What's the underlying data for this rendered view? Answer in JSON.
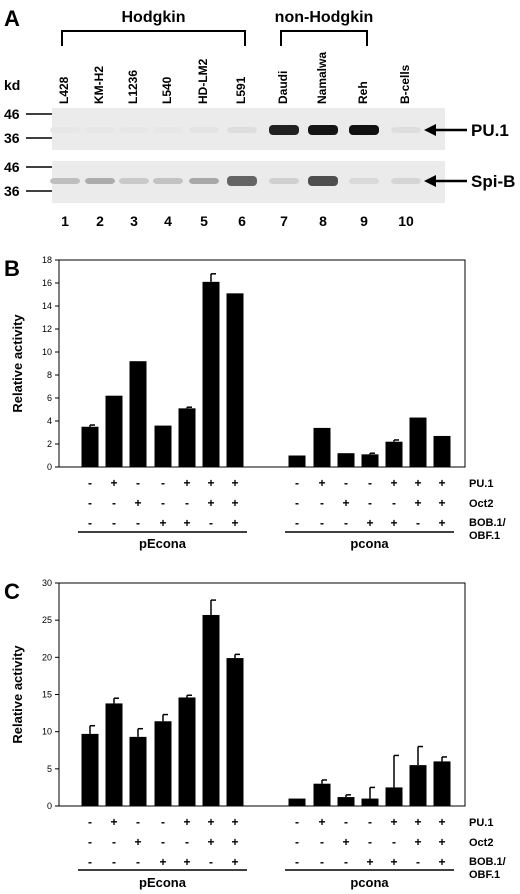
{
  "panel_a": {
    "letter": "A",
    "groups": [
      {
        "label": "Hodgkin",
        "lanes": [
          1,
          6
        ]
      },
      {
        "label": "non-Hodgkin",
        "lanes": [
          7,
          9
        ]
      }
    ],
    "lanes": [
      "L428",
      "KM-H2",
      "L1236",
      "L540",
      "HD-LM2",
      "L591",
      "Daudi",
      "Namalwa",
      "Reh",
      "B-cells"
    ],
    "lane_numbers": [
      "1",
      "2",
      "3",
      "4",
      "5",
      "6",
      "7",
      "8",
      "9",
      "10"
    ],
    "kd_label": "kd",
    "blots": [
      {
        "name": "PU.1",
        "markers": [
          "46",
          "36"
        ],
        "intensity": [
          0.02,
          0.02,
          0.02,
          0.02,
          0.03,
          0.06,
          0.9,
          0.95,
          0.97,
          0.06
        ]
      },
      {
        "name": "Spi-B",
        "markers": [
          "46",
          "36"
        ],
        "intensity": [
          0.2,
          0.28,
          0.15,
          0.18,
          0.3,
          0.6,
          0.12,
          0.7,
          0.08,
          0.1
        ]
      }
    ]
  },
  "chart_data": [
    {
      "type": "bar",
      "panel": "B",
      "ylabel": "Relative activity",
      "ylim": [
        0,
        18
      ],
      "yticks": [
        0,
        2,
        4,
        6,
        8,
        10,
        12,
        14,
        16,
        18
      ],
      "groups": [
        {
          "label": "pEcona",
          "values": [
            3.5,
            6.2,
            9.2,
            3.6,
            5.1,
            16.1,
            15.1
          ],
          "errors": [
            0.15,
            0,
            0,
            0,
            0.1,
            0.7,
            0
          ]
        },
        {
          "label": "pcona",
          "values": [
            1.0,
            3.4,
            1.2,
            1.1,
            2.2,
            4.3,
            2.7
          ],
          "errors": [
            0,
            0,
            0,
            0.1,
            0.15,
            0,
            0
          ]
        }
      ],
      "conditions": {
        "rows": [
          "PU.1",
          "Oct2",
          "BOB.1/ OBF.1"
        ],
        "signs": [
          [
            "-",
            "+",
            "-",
            "-",
            "+",
            "+",
            "+"
          ],
          [
            "-",
            "-",
            "+",
            "-",
            "-",
            "+",
            "+"
          ],
          [
            "-",
            "-",
            "-",
            "+",
            "+",
            "-",
            "+"
          ]
        ]
      }
    },
    {
      "type": "bar",
      "panel": "C",
      "ylabel": "Relative activity",
      "ylim": [
        0,
        30
      ],
      "yticks": [
        0,
        5,
        10,
        15,
        20,
        25,
        30
      ],
      "groups": [
        {
          "label": "pEcona",
          "values": [
            9.7,
            13.8,
            9.3,
            11.4,
            14.6,
            25.7,
            19.9
          ],
          "errors": [
            1.1,
            0.7,
            1.1,
            0.9,
            0.3,
            2.0,
            0.5
          ]
        },
        {
          "label": "pcona",
          "values": [
            1.0,
            3.0,
            1.2,
            1.0,
            2.5,
            5.5,
            6.0
          ],
          "errors": [
            0,
            0.5,
            0.3,
            1.5,
            4.3,
            2.5,
            0.6
          ]
        }
      ],
      "conditions": {
        "rows": [
          "PU.1",
          "Oct2",
          "BOB.1/ OBF.1"
        ],
        "signs": [
          [
            "-",
            "+",
            "-",
            "-",
            "+",
            "+",
            "+"
          ],
          [
            "-",
            "-",
            "+",
            "-",
            "-",
            "+",
            "+"
          ],
          [
            "-",
            "-",
            "-",
            "+",
            "+",
            "-",
            "+"
          ]
        ]
      }
    }
  ]
}
